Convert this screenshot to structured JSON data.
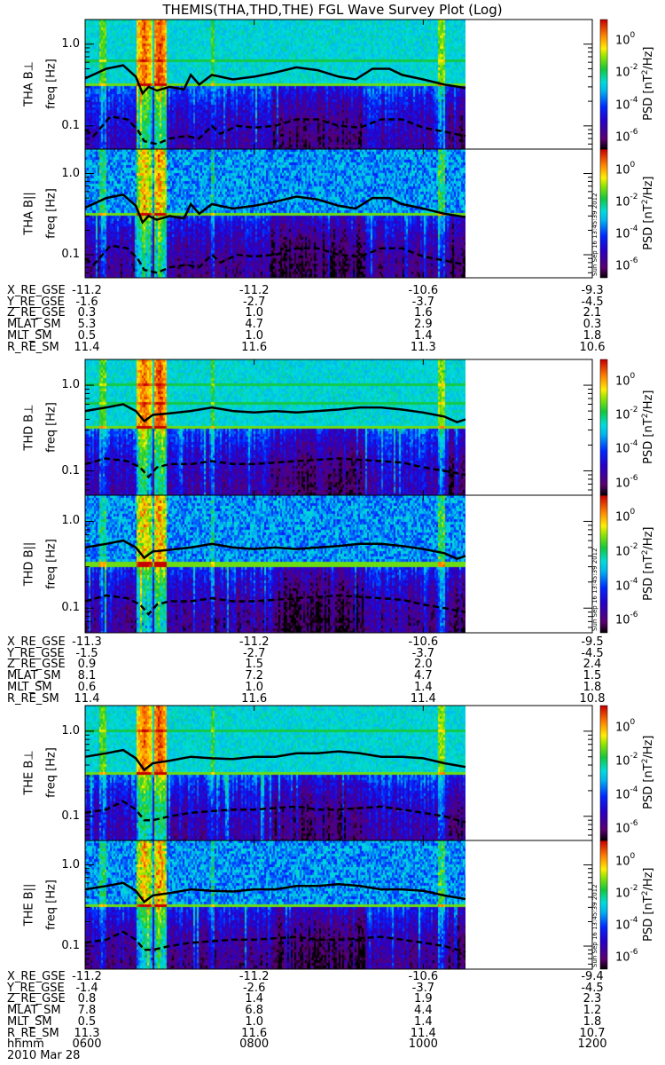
{
  "title": "THEMIS(THA,THD,THE) FGL Wave Survey Plot (Log)",
  "colors": {
    "line": "#000000",
    "background": "#ffffff"
  },
  "chart_data": {
    "type": "heatmap",
    "title": "THEMIS(THA,THD,THE) FGL Wave Survey Plot (Log)",
    "xlabel": "hhmm",
    "date": "2010 Mar 28",
    "x_ticks": [
      "0600",
      "0800",
      "1000",
      "1200"
    ],
    "xlim_hours": [
      6,
      12
    ],
    "data_end_hour": 10.5,
    "ylim_hz": [
      0.052,
      2.0
    ],
    "y_scale": "log",
    "y_ticks": [
      "1.0",
      "0.1"
    ],
    "y_tick_values": [
      1.0,
      0.1
    ],
    "colorbar": {
      "label": "PSD [nT²/Hz]",
      "label_main": "PSD",
      "label_unit": "[nT",
      "label_unit_sup": "2",
      "label_unit_end": "/Hz]",
      "scale": "log",
      "range_log10": [
        -6.7,
        1.3
      ],
      "ticks": [
        {
          "base": "10",
          "exp": "0",
          "v": 0
        },
        {
          "base": "10",
          "exp": "-2",
          "v": -2
        },
        {
          "base": "10",
          "exp": "-4",
          "v": -4
        },
        {
          "base": "10",
          "exp": "-6",
          "v": -6
        }
      ]
    },
    "stamp": "Sun Sep 16 13:45:39 2012",
    "probes": [
      {
        "name": "THA",
        "panels": [
          {
            "probe_label": "THA  B⊥",
            "ylabel": "freq [Hz]",
            "component": "perp"
          },
          {
            "probe_label": "THA  B||",
            "ylabel": "freq [Hz]",
            "component": "par"
          }
        ],
        "solid_line": {
          "t": [
            6.0,
            6.25,
            6.45,
            6.6,
            6.68,
            6.75,
            6.85,
            7.0,
            7.17,
            7.25,
            7.35,
            7.5,
            7.75,
            8.0,
            8.25,
            8.5,
            8.75,
            9.0,
            9.2,
            9.4,
            9.6,
            9.75,
            10.0,
            10.25,
            10.5
          ],
          "f": [
            0.38,
            0.5,
            0.55,
            0.4,
            0.25,
            0.3,
            0.27,
            0.3,
            0.28,
            0.42,
            0.32,
            0.42,
            0.37,
            0.4,
            0.45,
            0.52,
            0.48,
            0.4,
            0.37,
            0.5,
            0.5,
            0.42,
            0.37,
            0.32,
            0.29
          ]
        },
        "dashed_line": {
          "t": [
            6.0,
            6.1,
            6.3,
            6.5,
            6.62,
            6.7,
            6.85,
            7.0,
            7.2,
            7.35,
            7.5,
            7.6,
            7.8,
            8.0,
            8.25,
            8.5,
            8.75,
            9.0,
            9.25,
            9.5,
            9.75,
            10.0,
            10.25,
            10.5
          ],
          "f": [
            0.09,
            0.075,
            0.13,
            0.12,
            0.09,
            0.065,
            0.06,
            0.07,
            0.075,
            0.07,
            0.1,
            0.08,
            0.1,
            0.095,
            0.1,
            0.12,
            0.12,
            0.1,
            0.095,
            0.12,
            0.12,
            0.095,
            0.085,
            0.075
          ]
        },
        "ephemeris": {
          "labels": [
            "X_RE_GSE",
            "Y_RE_GSE",
            "Z_RE_GSE",
            "MLAT_SM",
            "MLT_SM",
            "R_RE_SM"
          ],
          "values": [
            [
              "-11.2",
              "-11.2",
              "-10.6",
              "-9.3"
            ],
            [
              "-1.6",
              "-2.7",
              "-3.7",
              "-4.5"
            ],
            [
              "0.3",
              "1.0",
              "1.6",
              "2.1"
            ],
            [
              "5.3",
              "4.7",
              "2.9",
              "0.3"
            ],
            [
              "0.5",
              "1.0",
              "1.4",
              "1.8"
            ],
            [
              "11.4",
              "11.6",
              "11.3",
              "10.6"
            ]
          ]
        }
      },
      {
        "name": "THD",
        "panels": [
          {
            "probe_label": "THD  B⊥",
            "ylabel": "freq [Hz]",
            "component": "perp"
          },
          {
            "probe_label": "THD  B||",
            "ylabel": "freq [Hz]",
            "component": "par"
          }
        ],
        "solid_line": {
          "t": [
            6.0,
            6.25,
            6.45,
            6.6,
            6.7,
            6.8,
            7.0,
            7.25,
            7.5,
            7.75,
            8.0,
            8.25,
            8.5,
            8.75,
            9.0,
            9.25,
            9.5,
            9.75,
            10.0,
            10.25,
            10.4,
            10.5
          ],
          "f": [
            0.5,
            0.55,
            0.6,
            0.5,
            0.38,
            0.45,
            0.47,
            0.5,
            0.55,
            0.5,
            0.48,
            0.5,
            0.48,
            0.5,
            0.52,
            0.55,
            0.55,
            0.52,
            0.48,
            0.43,
            0.37,
            0.4
          ]
        },
        "dashed_line": {
          "t": [
            6.0,
            6.25,
            6.5,
            6.65,
            6.75,
            6.85,
            7.0,
            7.25,
            7.5,
            7.75,
            8.0,
            8.25,
            8.5,
            8.75,
            9.0,
            9.25,
            9.5,
            9.75,
            10.0,
            10.25,
            10.5
          ],
          "f": [
            0.12,
            0.14,
            0.13,
            0.11,
            0.085,
            0.11,
            0.12,
            0.12,
            0.13,
            0.12,
            0.12,
            0.125,
            0.13,
            0.135,
            0.14,
            0.135,
            0.13,
            0.125,
            0.11,
            0.1,
            0.09
          ]
        },
        "ephemeris": {
          "labels": [
            "X_RE_GSE",
            "Y_RE_GSE",
            "Z_RE_GSE",
            "MLAT_SM",
            "MLT_SM",
            "R_RE_SM"
          ],
          "values": [
            [
              "-11.3",
              "-11.2",
              "-10.6",
              "-9.5"
            ],
            [
              "-1.5",
              "-2.7",
              "-3.7",
              "-4.5"
            ],
            [
              "0.9",
              "1.5",
              "2.0",
              "2.4"
            ],
            [
              "8.1",
              "7.2",
              "4.7",
              "1.5"
            ],
            [
              "0.6",
              "1.0",
              "1.4",
              "1.8"
            ],
            [
              "11.4",
              "11.6",
              "11.4",
              "10.8"
            ]
          ]
        }
      },
      {
        "name": "THE",
        "panels": [
          {
            "probe_label": "THE  B⊥",
            "ylabel": "freq [Hz]",
            "component": "perp"
          },
          {
            "probe_label": "THE  B||",
            "ylabel": "freq [Hz]",
            "component": "par"
          }
        ],
        "solid_line": {
          "t": [
            6.0,
            6.25,
            6.45,
            6.6,
            6.7,
            6.8,
            7.0,
            7.25,
            7.5,
            7.75,
            8.0,
            8.25,
            8.5,
            8.75,
            9.0,
            9.25,
            9.5,
            9.75,
            10.0,
            10.25,
            10.5
          ],
          "f": [
            0.5,
            0.55,
            0.6,
            0.48,
            0.35,
            0.42,
            0.45,
            0.5,
            0.48,
            0.47,
            0.5,
            0.5,
            0.55,
            0.55,
            0.58,
            0.55,
            0.5,
            0.5,
            0.48,
            0.42,
            0.38
          ]
        },
        "dashed_line": {
          "t": [
            6.0,
            6.25,
            6.45,
            6.6,
            6.7,
            6.8,
            7.0,
            7.25,
            7.5,
            7.75,
            8.0,
            8.25,
            8.5,
            8.75,
            9.0,
            9.25,
            9.5,
            9.75,
            10.0,
            10.25,
            10.5
          ],
          "f": [
            0.11,
            0.12,
            0.15,
            0.12,
            0.09,
            0.09,
            0.1,
            0.11,
            0.115,
            0.12,
            0.12,
            0.125,
            0.13,
            0.12,
            0.12,
            0.125,
            0.13,
            0.12,
            0.11,
            0.1,
            0.085
          ]
        },
        "ephemeris": {
          "labels": [
            "X_RE_GSE",
            "Y_RE_GSE",
            "Z_RE_GSE",
            "MLAT_SM",
            "MLT_SM",
            "R_RE_SM"
          ],
          "values": [
            [
              "-11.2",
              "-11.2",
              "-10.6",
              "-9.4"
            ],
            [
              "-1.4",
              "-2.6",
              "-3.7",
              "-4.5"
            ],
            [
              "0.8",
              "1.4",
              "1.9",
              "2.3"
            ],
            [
              "7.8",
              "6.8",
              "4.4",
              "1.2"
            ],
            [
              "0.5",
              "1.0",
              "1.4",
              "1.8"
            ],
            [
              "11.3",
              "11.6",
              "11.4",
              "10.7"
            ]
          ]
        }
      }
    ]
  }
}
